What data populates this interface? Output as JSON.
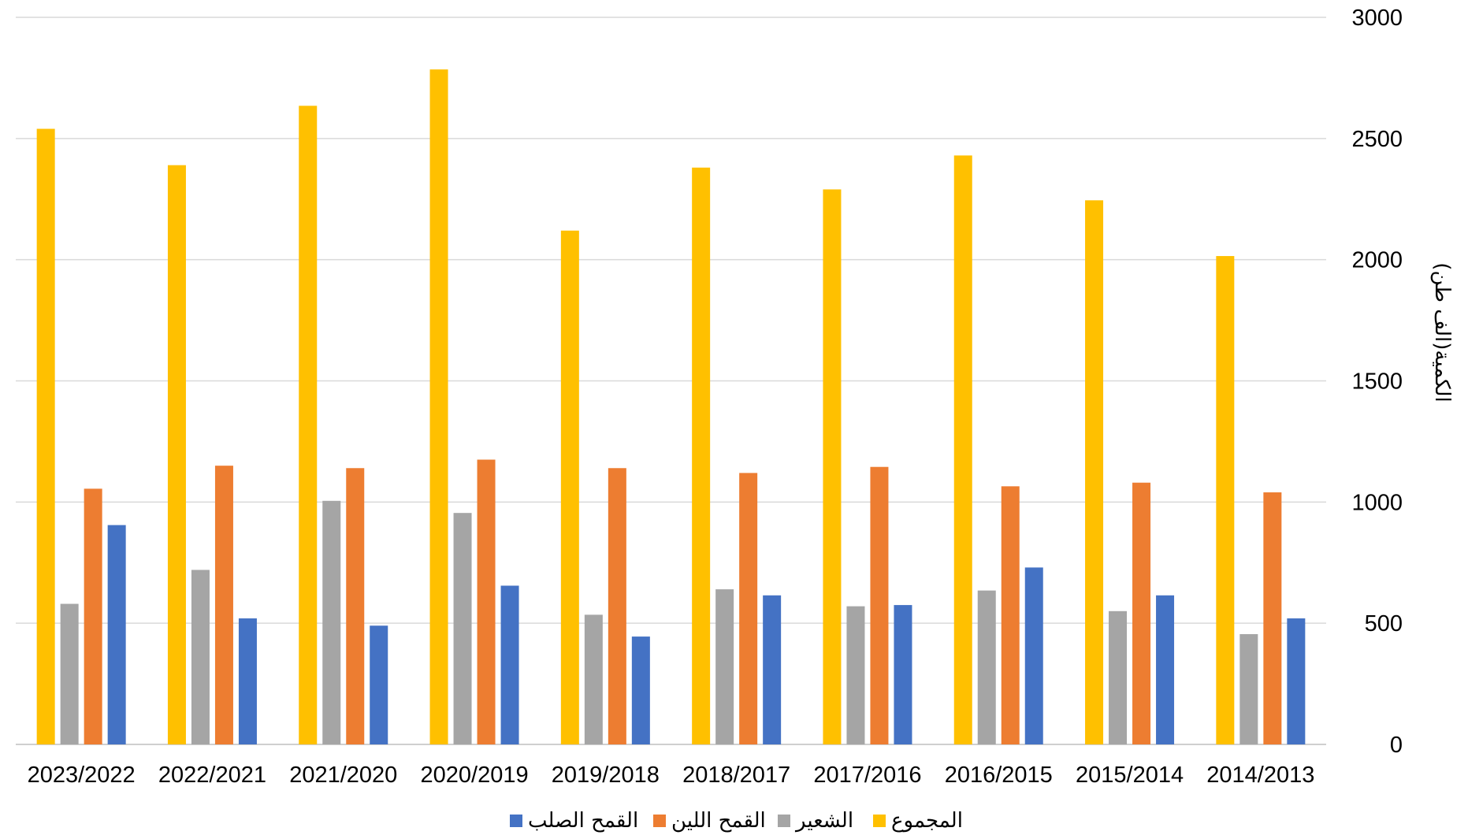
{
  "chart_data": {
    "type": "bar",
    "title": "",
    "ylabel": "الكمية(الف طن)",
    "xlabel": "",
    "ylim": [
      0,
      3000
    ],
    "yticks": [
      0,
      500,
      1000,
      1500,
      2000,
      2500,
      3000
    ],
    "y_axis_side": "right",
    "grid": true,
    "legend_position": "bottom",
    "categories": [
      "2023/2022",
      "2022/2021",
      "2021/2020",
      "2020/2019",
      "2019/2018",
      "2018/2017",
      "2017/2016",
      "2016/2015",
      "2015/2014",
      "2014/2013"
    ],
    "series": [
      {
        "name": "المجموع",
        "color": "#FFC000",
        "values": [
          2540,
          2390,
          2635,
          2785,
          2120,
          2380,
          2290,
          2430,
          2245,
          2015
        ]
      },
      {
        "name": "الشعير",
        "color": "#A5A5A5",
        "values": [
          580,
          720,
          1005,
          955,
          535,
          640,
          570,
          635,
          550,
          455
        ]
      },
      {
        "name": "القمح اللين",
        "color": "#ED7D31",
        "values": [
          1055,
          1150,
          1140,
          1175,
          1140,
          1120,
          1145,
          1065,
          1080,
          1040
        ]
      },
      {
        "name": "القمح الصلب",
        "color": "#4472C4",
        "values": [
          905,
          520,
          490,
          655,
          445,
          615,
          575,
          730,
          615,
          520
        ]
      }
    ],
    "legend_order": [
      "القمح الصلب",
      "القمح اللين",
      "الشعير",
      "المجموع"
    ]
  }
}
